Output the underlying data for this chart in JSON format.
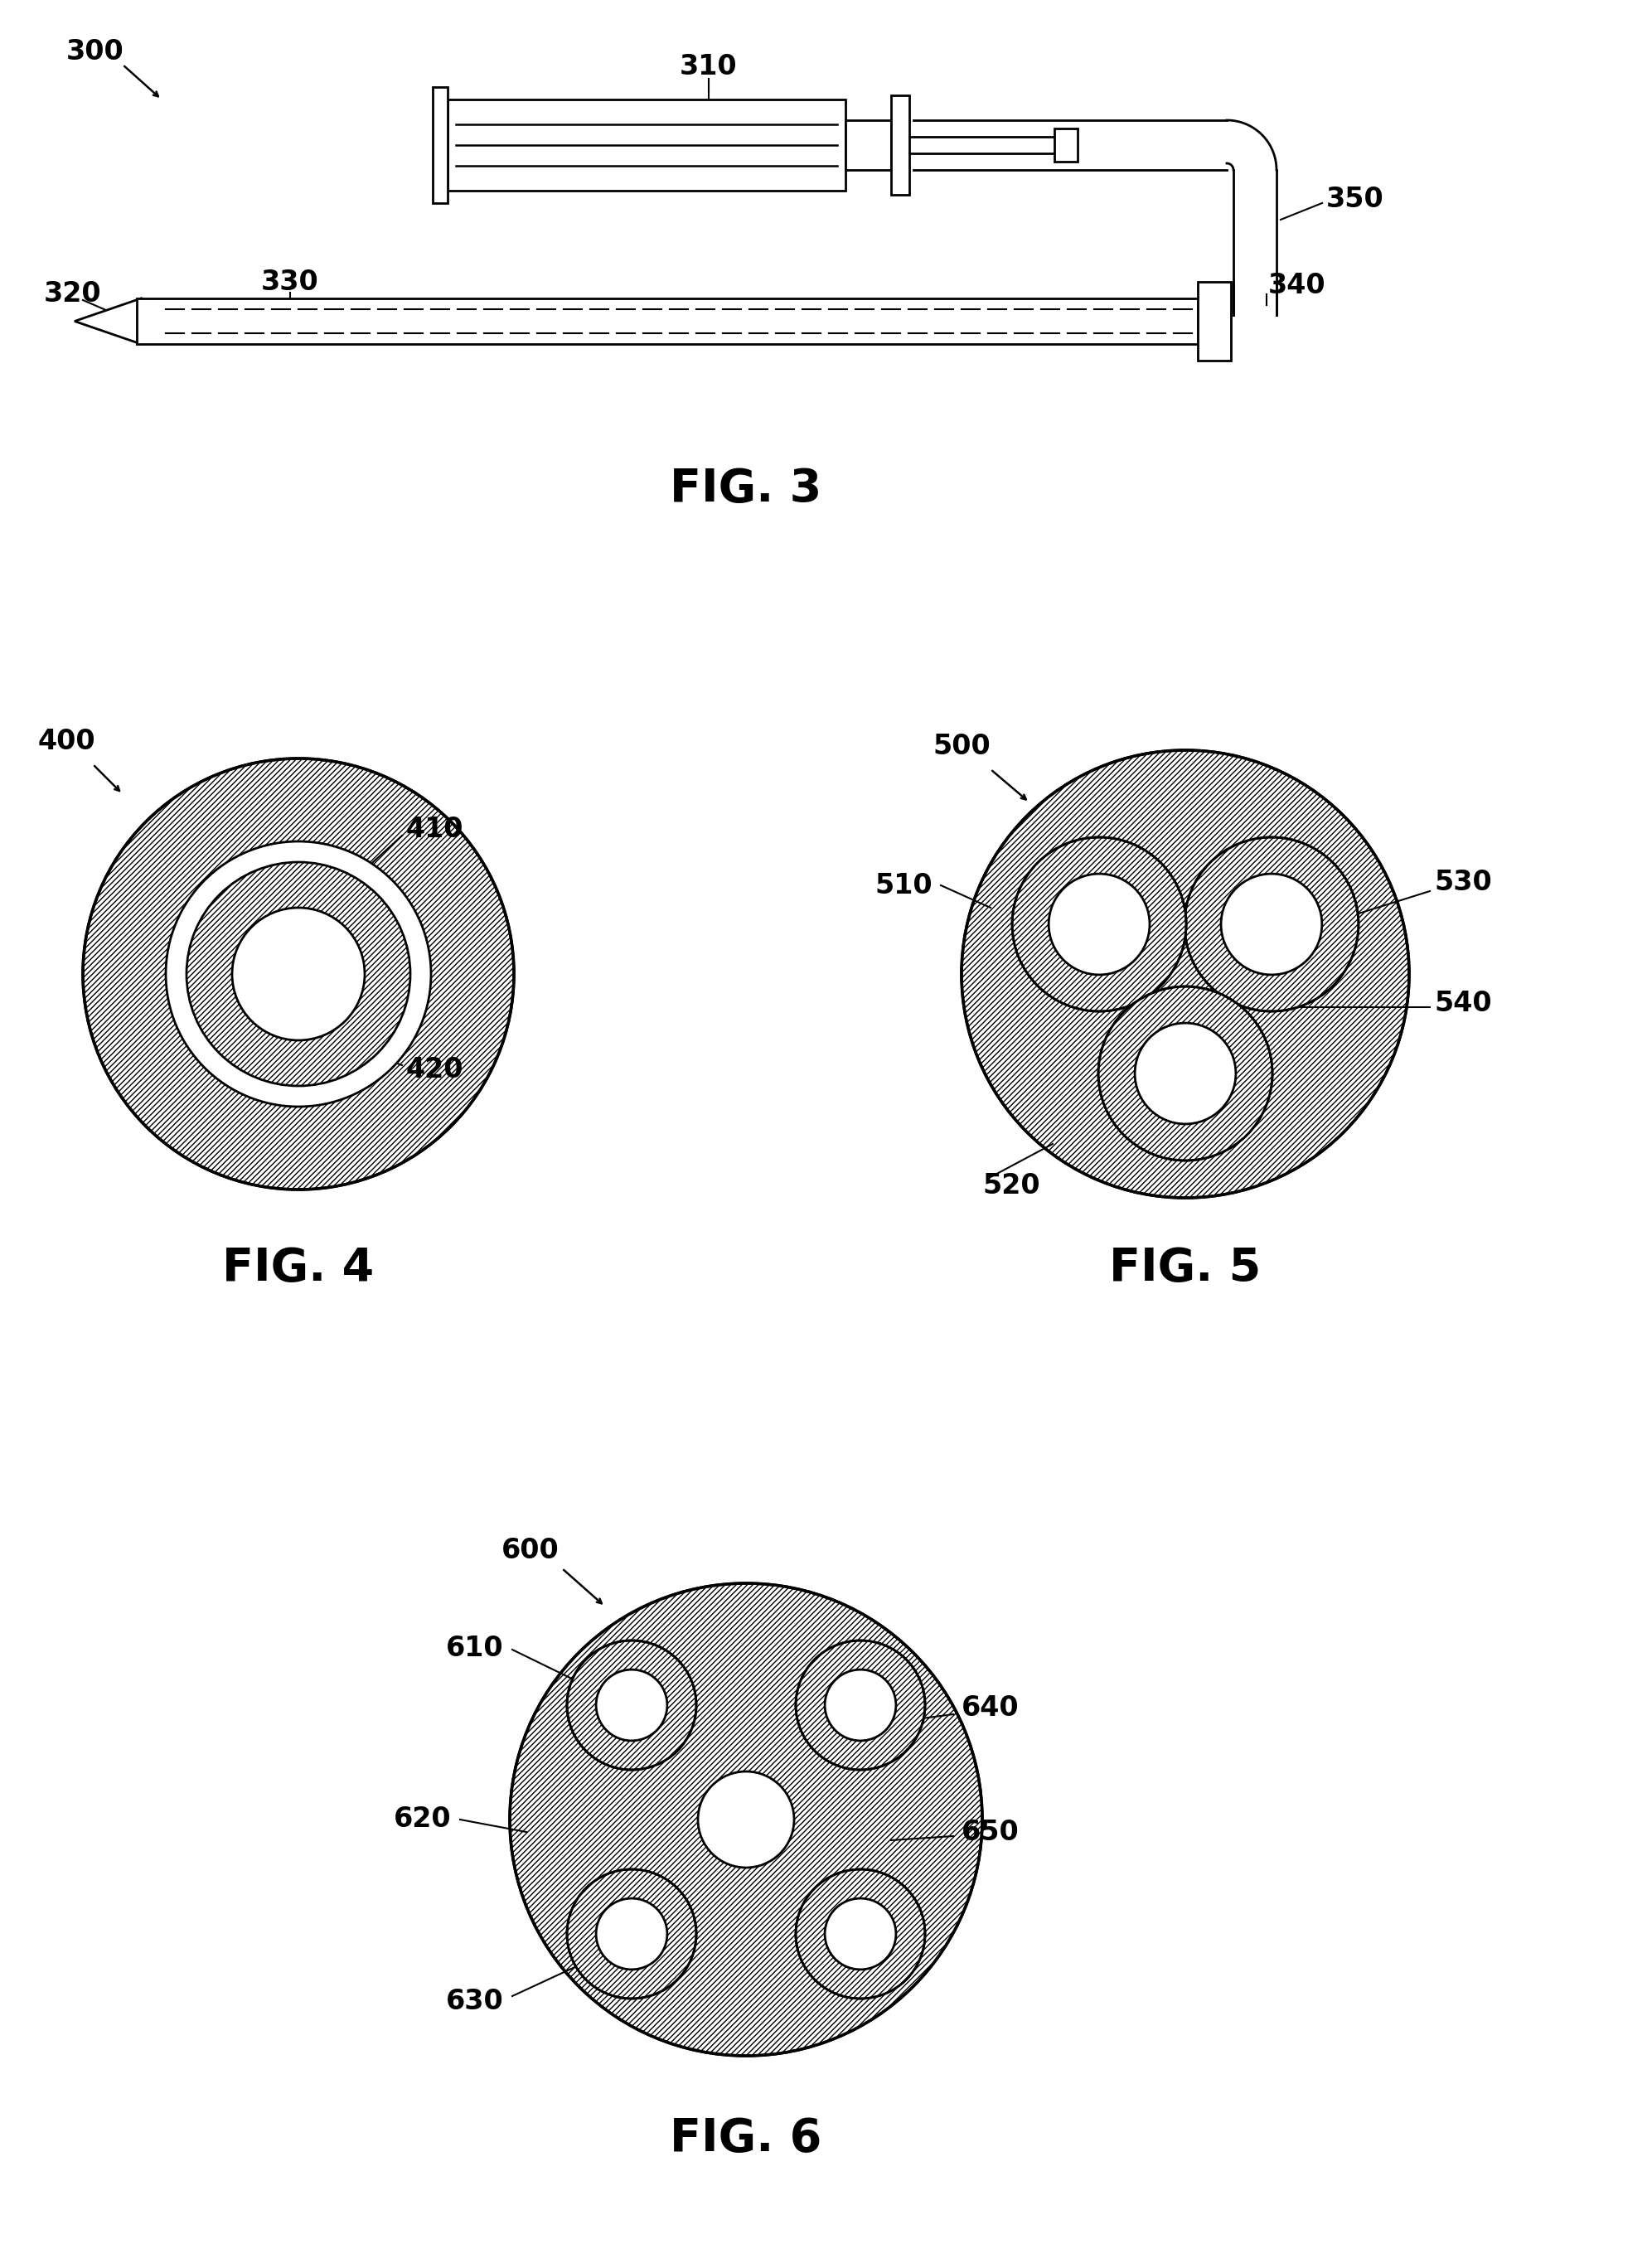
{
  "bg_color": "#ffffff",
  "fig3": {
    "label": "FIG. 3",
    "label_300": "300",
    "label_310": "310",
    "label_320": "320",
    "label_330": "330",
    "label_340": "340",
    "label_350": "350"
  },
  "fig4": {
    "label": "FIG. 4",
    "label_400": "400",
    "label_410": "410",
    "label_420": "420"
  },
  "fig5": {
    "label": "FIG. 5",
    "label_500": "500",
    "label_510": "510",
    "label_520": "520",
    "label_530": "530",
    "label_540": "540"
  },
  "fig6": {
    "label": "FIG. 6",
    "label_600": "600",
    "label_610": "610",
    "label_620": "620",
    "label_630": "630",
    "label_640": "640",
    "label_650": "650"
  }
}
